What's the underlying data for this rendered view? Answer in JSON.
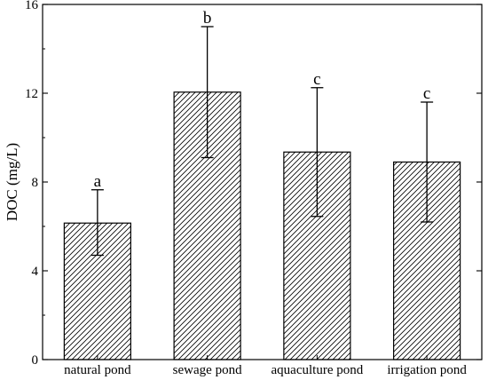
{
  "chart_data": {
    "type": "bar",
    "title": "",
    "xlabel": "",
    "ylabel": "DOC (mg/L)",
    "ylim": [
      0,
      16
    ],
    "yticks": [
      0,
      4,
      8,
      12,
      16
    ],
    "categories": [
      "natural pond",
      "sewage pond",
      "aquaculture pond",
      "irrigation pond"
    ],
    "values": [
      6.15,
      12.05,
      9.35,
      8.9
    ],
    "error_minus": [
      1.45,
      2.95,
      2.9,
      2.7
    ],
    "error_plus": [
      1.5,
      2.95,
      2.9,
      2.7
    ],
    "significance_letters": [
      "a",
      "b",
      "c",
      "c"
    ],
    "bar_fill": "diagonal-hatch",
    "colors": {
      "stroke": "#000000",
      "background": "#ffffff"
    },
    "grid": false,
    "legend": "none"
  }
}
